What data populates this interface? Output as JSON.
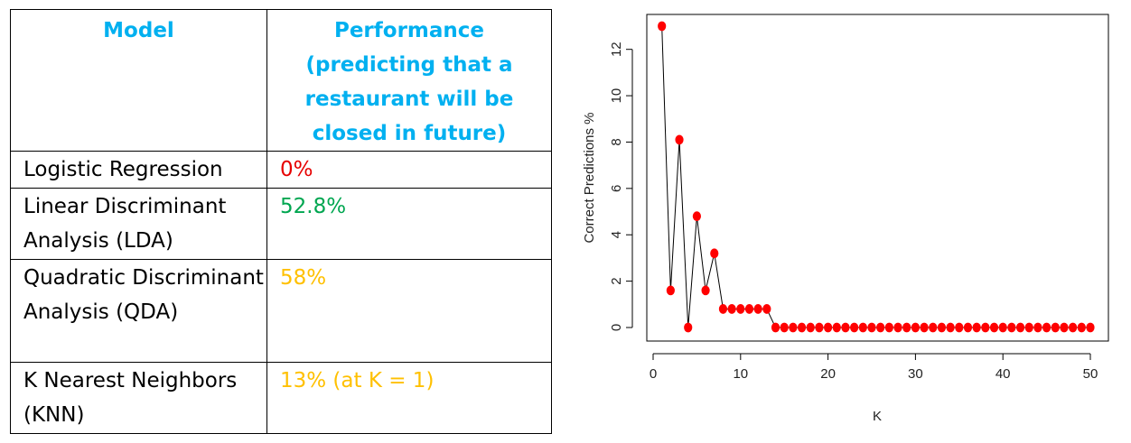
{
  "table": {
    "headers": {
      "model": "Model",
      "performance": "Performance (predicting that a restaurant will be closed in future)"
    },
    "rows": [
      {
        "model": "Logistic Regression",
        "performance": "0%",
        "color": "#e60000"
      },
      {
        "model": "Linear Discriminant Analysis (LDA)",
        "performance": "52.8%",
        "color": "#00a650"
      },
      {
        "model": "Quadratic Discriminant Analysis (QDA)",
        "performance": "58%",
        "color": "#ffc000"
      },
      {
        "model": "K Nearest Neighbors (KNN)",
        "performance": "13% (at K = 1)",
        "color": "#ffc000"
      }
    ]
  },
  "chart_data": {
    "type": "scatter",
    "xlabel": "K",
    "ylabel": "Correct Predictions %",
    "xlim": [
      0,
      50
    ],
    "ylim": [
      0,
      13
    ],
    "xticks": [
      0,
      10,
      20,
      30,
      40,
      50
    ],
    "yticks": [
      0,
      2,
      4,
      6,
      8,
      10,
      12
    ],
    "grid": false,
    "point_color": "#ff0000",
    "line_color": "#000000",
    "x": [
      1,
      2,
      3,
      4,
      5,
      6,
      7,
      8,
      9,
      10,
      11,
      12,
      13,
      14,
      15,
      16,
      17,
      18,
      19,
      20,
      21,
      22,
      23,
      24,
      25,
      26,
      27,
      28,
      29,
      30,
      31,
      32,
      33,
      34,
      35,
      36,
      37,
      38,
      39,
      40,
      41,
      42,
      43,
      44,
      45,
      46,
      47,
      48,
      49,
      50
    ],
    "y": [
      13,
      1.6,
      8.1,
      0,
      4.8,
      1.6,
      3.2,
      0.8,
      0.8,
      0.8,
      0.8,
      0.8,
      0.8,
      0,
      0,
      0,
      0,
      0,
      0,
      0,
      0,
      0,
      0,
      0,
      0,
      0,
      0,
      0,
      0,
      0,
      0,
      0,
      0,
      0,
      0,
      0,
      0,
      0,
      0,
      0,
      0,
      0,
      0,
      0,
      0,
      0,
      0,
      0,
      0,
      0
    ]
  }
}
